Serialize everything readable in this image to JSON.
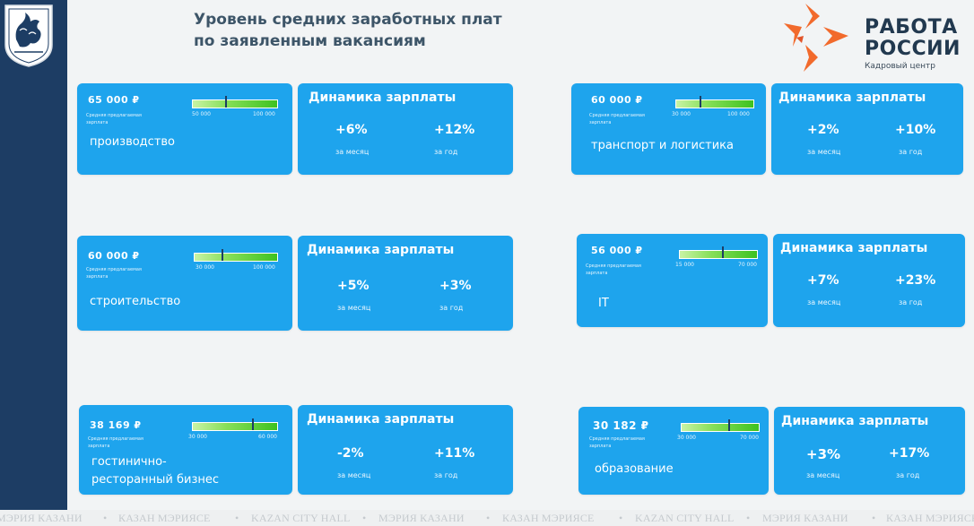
{
  "header": {
    "title_line1": "Уровень средних заработных плат",
    "title_line2": "по заявленным вакансиям"
  },
  "logo": {
    "line1": "РАБОТА",
    "line2": "РОССИИ",
    "sub": "Кадровый центр",
    "accent_color": "#f26a2c"
  },
  "sidebar": {
    "color": "#1d3d64",
    "emblem_icon": "kazan-coat-of-arms-icon"
  },
  "colors": {
    "card": "#1ea4ed",
    "bar_start": "#c9f3a5",
    "bar_end": "#3ec21f"
  },
  "sections": [
    {
      "salary": "65 000 ₽",
      "sublabel": "Средняя предлагаемая зарплата",
      "industry": "производство",
      "scale_min": "50 000",
      "scale_max": "100 000",
      "marker_fraction": 0.38,
      "dyn_title": "Динамика зарплаты",
      "month_pct": "+6%",
      "month_label": "за месяц",
      "year_pct": "+12%",
      "year_label": "за год"
    },
    {
      "salary": "60 000 ₽",
      "sublabel": "Средняя предлагаемая зарплата",
      "industry": "транспорт и логистика",
      "scale_min": "30 000",
      "scale_max": "100 000",
      "marker_fraction": 0.3,
      "dyn_title": "Динамика зарплаты",
      "month_pct": "+2%",
      "month_label": "за месяц",
      "year_pct": "+10%",
      "year_label": "за год"
    },
    {
      "salary": "60 000 ₽",
      "sublabel": "Средняя предлагаемая зарплата",
      "industry": "строительство",
      "scale_min": "30 000",
      "scale_max": "100 000",
      "marker_fraction": 0.33,
      "dyn_title": "Динамика зарплаты",
      "month_pct": "+5%",
      "month_label": "за месяц",
      "year_pct": "+3%",
      "year_label": "за год"
    },
    {
      "salary": "56 000 ₽",
      "sublabel": "Средняя предлагаемая зарплата",
      "industry": "IT",
      "scale_min": "15 000",
      "scale_max": "70 000",
      "marker_fraction": 0.55,
      "dyn_title": "Динамика зарплаты",
      "month_pct": "+7%",
      "month_label": "за месяц",
      "year_pct": "+23%",
      "year_label": "за год"
    },
    {
      "salary": "38 169 ₽",
      "sublabel": "Средняя предлагаемая зарплата",
      "industry_line1": "гостинично-",
      "industry_line2": "ресторанный бизнес",
      "scale_min": "30 000",
      "scale_max": "60 000",
      "marker_fraction": 0.7,
      "dyn_title": "Динамика зарплаты",
      "month_pct": "-2%",
      "month_label": "за месяц",
      "year_pct": "+11%",
      "year_label": "за год"
    },
    {
      "salary": "30 182 ₽",
      "sublabel": "Средняя предлагаемая зарплата",
      "industry": "образование",
      "scale_min": "30 000",
      "scale_max": "70 000",
      "marker_fraction": 0.6,
      "dyn_title": "Динамика зарплаты",
      "month_pct": "+3%",
      "month_label": "за месяц",
      "year_pct": "+17%",
      "year_label": "за год"
    }
  ],
  "footer_strip": [
    "МЭРИЯ КАЗАНИ",
    "•",
    "КАЗАН МЭРИЯСЕ",
    "•",
    "KAZAN CITY HALL",
    "•",
    "МЭРИЯ КАЗАНИ",
    "•",
    "КАЗАН МЭРИЯСЕ",
    "•",
    "KAZAN CITY HALL",
    "•",
    "МЭРИЯ КАЗАНИ",
    "•",
    "КАЗАН МЭРИЯСЕ"
  ]
}
